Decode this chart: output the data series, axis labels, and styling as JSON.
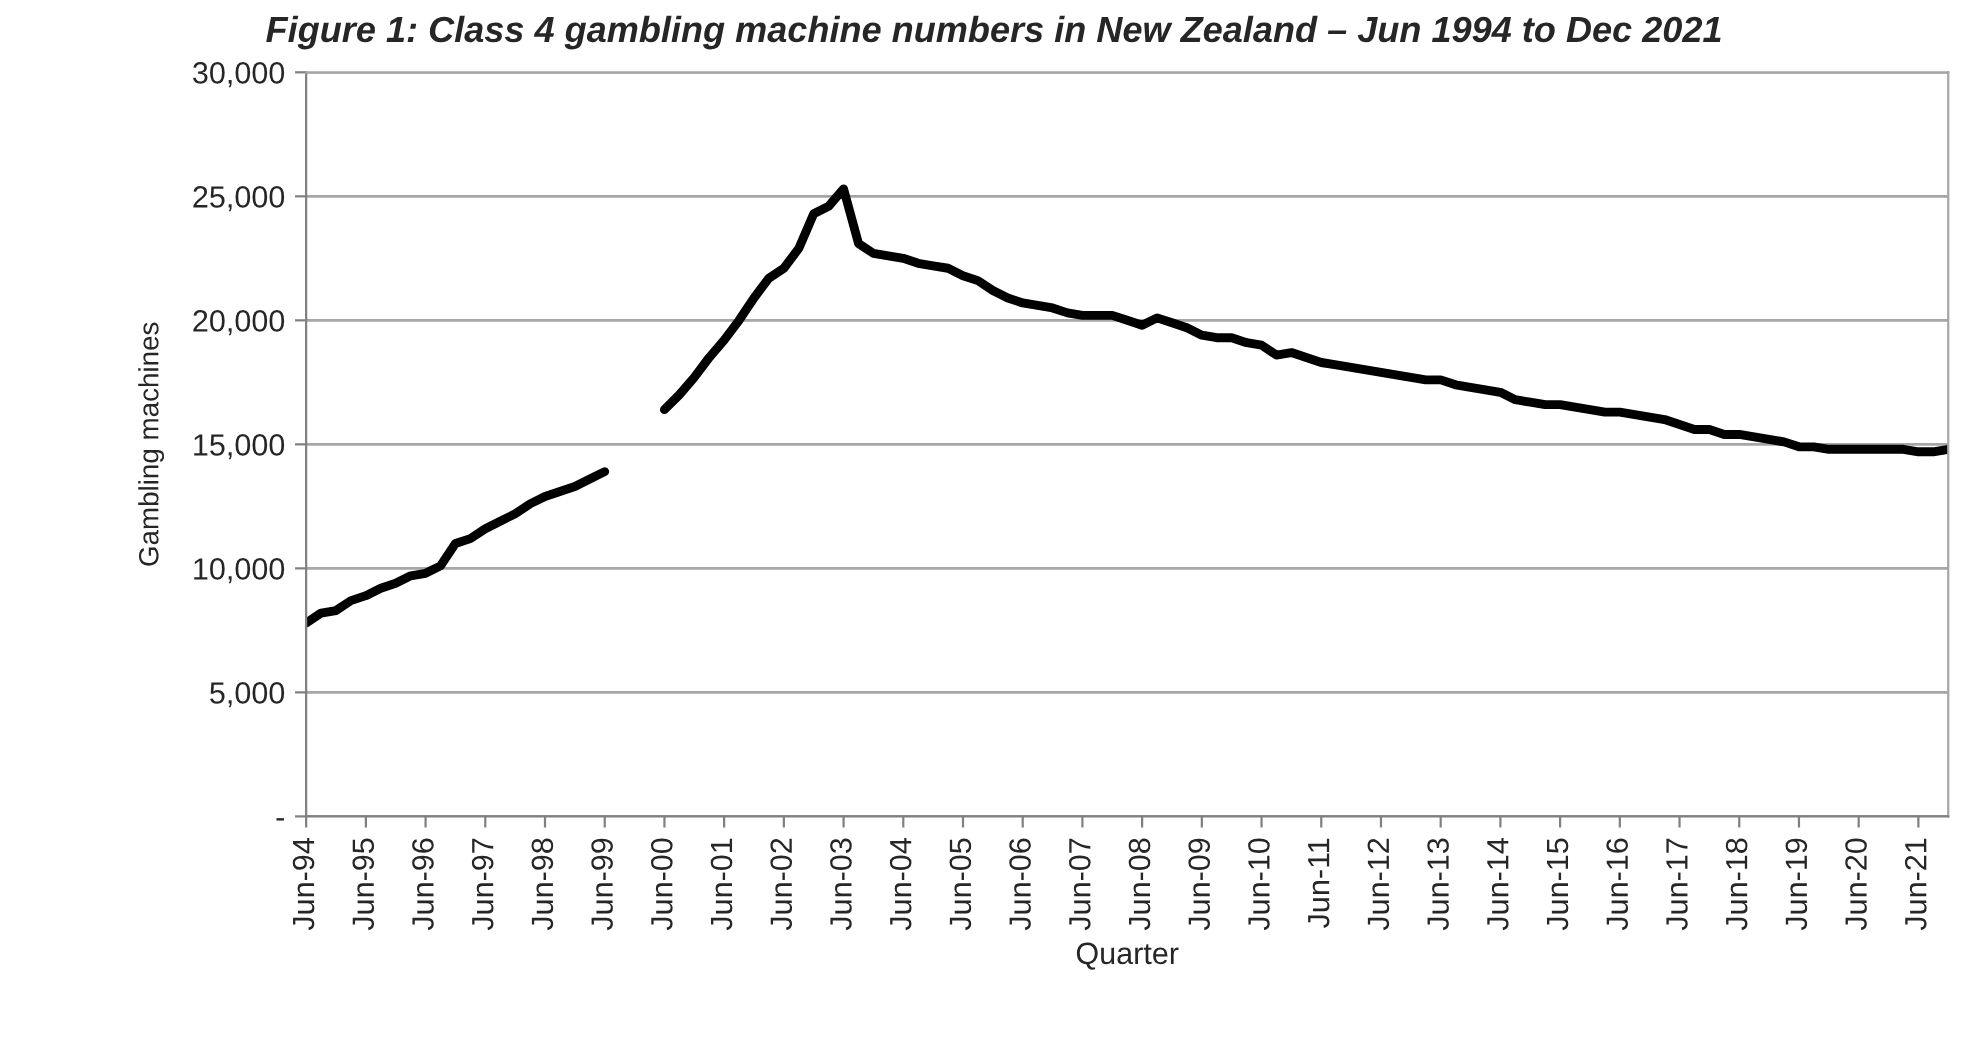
{
  "chart_data": {
    "type": "line",
    "title": "Figure 1: Class 4 gambling machine numbers in New Zealand – Jun 1994 to Dec 2021",
    "xlabel": "Quarter",
    "ylabel": "Gambling machines",
    "categories": [
      "Jun-94",
      null,
      null,
      null,
      "Jun-95",
      null,
      null,
      null,
      "Jun-96",
      null,
      null,
      null,
      "Jun-97",
      null,
      null,
      null,
      "Jun-98",
      null,
      null,
      null,
      "Jun-99",
      null,
      null,
      null,
      "Jun-00",
      null,
      null,
      null,
      "Jun-01",
      null,
      null,
      null,
      "Jun-02",
      null,
      null,
      null,
      "Jun-03",
      null,
      null,
      null,
      "Jun-04",
      null,
      null,
      null,
      "Jun-05",
      null,
      null,
      null,
      "Jun-06",
      null,
      null,
      null,
      "Jun-07",
      null,
      null,
      null,
      "Jun-08",
      null,
      null,
      null,
      "Jun-09",
      null,
      null,
      null,
      "Jun-10",
      null,
      null,
      null,
      "Jun-11",
      null,
      null,
      null,
      "Jun-12",
      null,
      null,
      null,
      "Jun-13",
      null,
      null,
      null,
      "Jun-14",
      null,
      null,
      null,
      "Jun-15",
      null,
      null,
      null,
      "Jun-16",
      null,
      null,
      null,
      "Jun-17",
      null,
      null,
      null,
      "Jun-18",
      null,
      null,
      null,
      "Jun-19",
      null,
      null,
      null,
      "Jun-20",
      null,
      null,
      null,
      "Jun-21",
      null,
      null
    ],
    "series": [
      {
        "color": "#000000",
        "values": [
          7800,
          8200,
          8300,
          8700,
          8900,
          9200,
          9400,
          9700,
          9800,
          10100,
          11000,
          11200,
          11600,
          11900,
          12200,
          12600,
          12900,
          13100,
          13300,
          13600,
          13900,
          null,
          null,
          null,
          16400,
          17000,
          17700,
          18500,
          19200,
          20000,
          20900,
          21700,
          22100,
          22900,
          24300,
          24600,
          25300,
          23100,
          22700,
          22600,
          22500,
          22300,
          22200,
          22100,
          21800,
          21600,
          21200,
          20900,
          20700,
          20600,
          20500,
          20300,
          20200,
          20200,
          20200,
          20000,
          19800,
          20100,
          19900,
          19700,
          19400,
          19300,
          19300,
          19100,
          19000,
          18600,
          18700,
          18500,
          18300,
          18200,
          18100,
          18000,
          17900,
          17800,
          17700,
          17600,
          17600,
          17400,
          17300,
          17200,
          17100,
          16800,
          16700,
          16600,
          16600,
          16500,
          16400,
          16300,
          16300,
          16200,
          16100,
          16000,
          15800,
          15600,
          15600,
          15400,
          15400,
          15300,
          15200,
          15100,
          14900,
          14900,
          14800,
          14800,
          14800,
          14800,
          14800,
          14800,
          14700,
          14700,
          14800
        ]
      }
    ],
    "ylim": [
      0,
      30000
    ],
    "yticks": [
      {
        "value": 0,
        "label": "-"
      },
      {
        "value": 5000,
        "label": "5,000"
      },
      {
        "value": 10000,
        "label": "10,000"
      },
      {
        "value": 15000,
        "label": "15,000"
      },
      {
        "value": 20000,
        "label": "20,000"
      },
      {
        "value": 25000,
        "label": "25,000"
      },
      {
        "value": 30000,
        "label": "30,000"
      }
    ],
    "grid": "y",
    "marker": "none",
    "line_style": "solid"
  }
}
